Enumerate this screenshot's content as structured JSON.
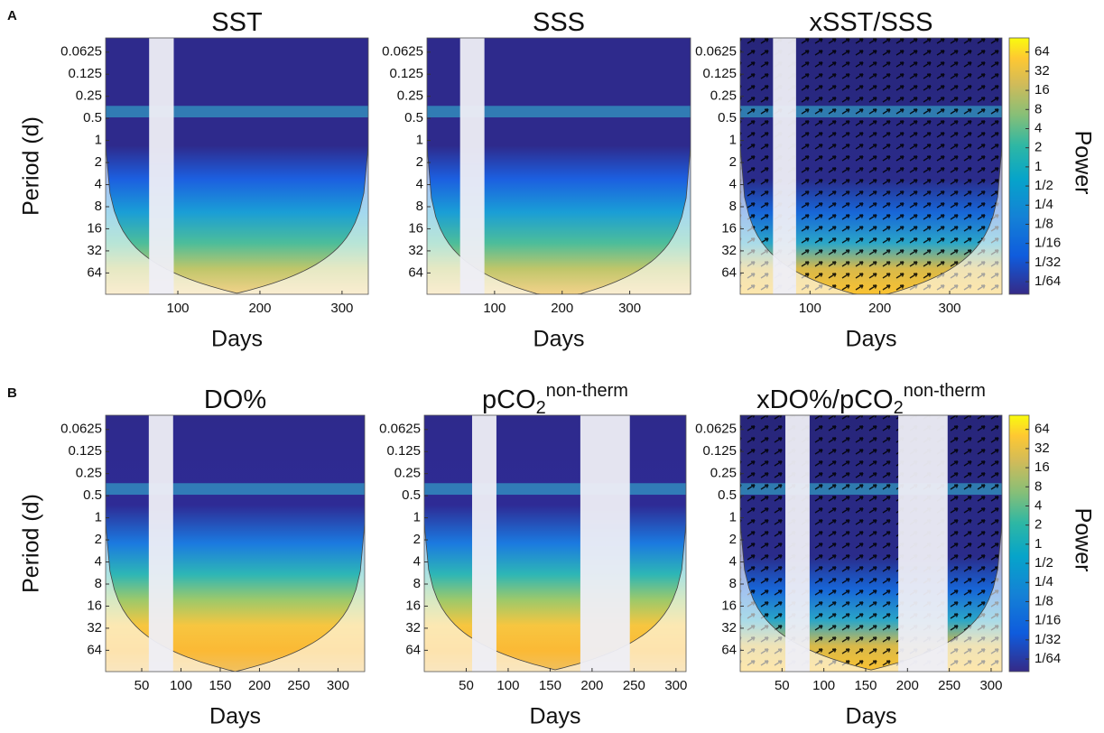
{
  "panel_labels": [
    "A",
    "B"
  ],
  "chart_data": [
    {
      "type": "wavelet",
      "title": "SST",
      "xlabel": "Days",
      "ylabel": "Period (d)",
      "yscale": "log",
      "y_reversed": true,
      "xlim": [
        12,
        332
      ],
      "xticks": [
        100,
        200,
        300
      ],
      "ylim": [
        0.04,
        125
      ],
      "yticks": [
        0.0625,
        0.125,
        0.25,
        0.5,
        1,
        2,
        4,
        8,
        16,
        32,
        64
      ],
      "gaps": [
        [
          65,
          95
        ]
      ],
      "phase_arrows": false
    },
    {
      "type": "wavelet",
      "title": "SSS",
      "xlabel": "Days",
      "yscale": "log",
      "y_reversed": true,
      "xlim": [
        0,
        390
      ],
      "xticks": [
        100,
        200,
        300
      ],
      "ylim": [
        0.04,
        125
      ],
      "yticks": [
        0.0625,
        0.125,
        0.25,
        0.5,
        1,
        2,
        4,
        8,
        16,
        32,
        64
      ],
      "gaps": [
        [
          49,
          85
        ]
      ],
      "phase_arrows": false
    },
    {
      "type": "wavelet",
      "title": "xSST/SSS",
      "xlabel": "Days",
      "yscale": "log",
      "y_reversed": true,
      "xlim": [
        0,
        375
      ],
      "xticks": [
        100,
        200,
        300
      ],
      "ylim": [
        0.04,
        125
      ],
      "yticks": [
        0.0625,
        0.125,
        0.25,
        0.5,
        1,
        2,
        4,
        8,
        16,
        32,
        64
      ],
      "gaps": [
        [
          47,
          80
        ]
      ],
      "phase_arrows": true,
      "clabel": "Power",
      "clim": [
        0.0099,
        107
      ],
      "cticks": [
        64,
        32,
        16,
        8,
        4,
        2,
        1,
        {
          "value": 0.5,
          "label": "1/2"
        },
        {
          "value": 0.25,
          "label": "1/4"
        },
        {
          "value": 0.125,
          "label": "1/8"
        },
        {
          "value": 0.0625,
          "label": "1/16"
        },
        {
          "value": 0.03125,
          "label": "1/32"
        },
        {
          "value": 0.015625,
          "label": "1/64"
        }
      ]
    },
    {
      "type": "wavelet",
      "title": "DO%",
      "xlabel": "Days",
      "ylabel": "Period (d)",
      "yscale": "log",
      "y_reversed": true,
      "xlim": [
        4,
        334
      ],
      "xticks": [
        50,
        100,
        150,
        200,
        250,
        300
      ],
      "ylim": [
        0.04,
        125
      ],
      "yticks": [
        0.0625,
        0.125,
        0.25,
        0.5,
        1,
        2,
        4,
        8,
        16,
        32,
        64
      ],
      "gaps": [
        [
          59,
          90
        ]
      ],
      "phase_arrows": false
    },
    {
      "type": "wavelet",
      "title": "pCO",
      "title_sub": "2",
      "title_sup": "non-therm",
      "xlabel": "Days",
      "yscale": "log",
      "y_reversed": true,
      "xlim": [
        0,
        312
      ],
      "xticks": [
        50,
        100,
        150,
        200,
        250,
        300
      ],
      "ylim": [
        0.04,
        125
      ],
      "yticks": [
        0.0625,
        0.125,
        0.25,
        0.5,
        1,
        2,
        4,
        8,
        16,
        32,
        64
      ],
      "gaps": [
        [
          57,
          86
        ],
        [
          186,
          245
        ]
      ],
      "phase_arrows": false
    },
    {
      "type": "wavelet",
      "title": "xDO%/pCO",
      "title_sub": "2",
      "title_sup": "non-therm",
      "xlabel": "Days",
      "yscale": "log",
      "y_reversed": true,
      "xlim": [
        0,
        313
      ],
      "xticks": [
        50,
        100,
        150,
        200,
        250,
        300
      ],
      "ylim": [
        0.04,
        125
      ],
      "yticks": [
        0.0625,
        0.125,
        0.25,
        0.5,
        1,
        2,
        4,
        8,
        16,
        32,
        64
      ],
      "gaps": [
        [
          54,
          83
        ],
        [
          189,
          248
        ]
      ],
      "phase_arrows": true,
      "clabel": "Power",
      "clim": [
        0.0099,
        107
      ],
      "cticks": [
        64,
        32,
        16,
        8,
        4,
        2,
        1,
        {
          "value": 0.5,
          "label": "1/2"
        },
        {
          "value": 0.25,
          "label": "1/4"
        },
        {
          "value": 0.125,
          "label": "1/8"
        },
        {
          "value": 0.0625,
          "label": "1/16"
        },
        {
          "value": 0.03125,
          "label": "1/32"
        },
        {
          "value": 0.015625,
          "label": "1/64"
        }
      ]
    }
  ]
}
